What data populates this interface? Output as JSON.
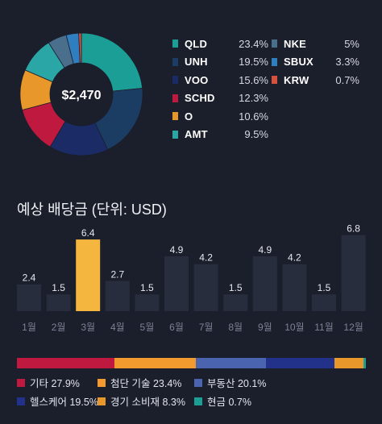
{
  "portfolio": {
    "total": "$2,470",
    "holdings": [
      {
        "ticker": "QLD",
        "percent": "23.4%",
        "share": 23.4,
        "color": "#1a9e96"
      },
      {
        "ticker": "UNH",
        "percent": "19.5%",
        "share": 19.5,
        "color": "#1c3d63"
      },
      {
        "ticker": "VOO",
        "percent": "15.6%",
        "share": 15.6,
        "color": "#1b2b66"
      },
      {
        "ticker": "SCHD",
        "percent": "12.3%",
        "share": 12.3,
        "color": "#c0193f"
      },
      {
        "ticker": "O",
        "percent": "10.6%",
        "share": 10.6,
        "color": "#e8972b"
      },
      {
        "ticker": "AMT",
        "percent": "9.5%",
        "share": 9.5,
        "color": "#2ba6a6"
      },
      {
        "ticker": "NKE",
        "percent": "5%",
        "share": 5,
        "color": "#4a6f8c"
      },
      {
        "ticker": "SBUX",
        "percent": "3.3%",
        "share": 3.3,
        "color": "#2f7fc0"
      },
      {
        "ticker": "KRW",
        "percent": "0.7%",
        "share": 0.7,
        "color": "#d8513f"
      }
    ]
  },
  "dividends": {
    "title": "예상 배당금 (단위: USD)",
    "chart_data": {
      "type": "bar",
      "categories": [
        "1월",
        "2월",
        "3월",
        "4월",
        "5월",
        "6월",
        "7월",
        "8월",
        "9월",
        "10월",
        "11월",
        "12월"
      ],
      "values": [
        2.4,
        1.5,
        6.4,
        2.7,
        1.5,
        4.9,
        4.2,
        1.5,
        4.9,
        4.2,
        1.5,
        6.8
      ],
      "labels": [
        "2.4",
        "1.5",
        "6.4",
        "2.7",
        "1.5",
        "4.9",
        "4.2",
        "1.5",
        "4.9",
        "4.2",
        "1.5",
        "6.8"
      ],
      "highlight_index": 2,
      "bar_color": "#282d3d",
      "highlight_color": "#f4b63f",
      "ylim": [
        0,
        7.2
      ]
    }
  },
  "categories": [
    {
      "label": "기타 27.9%",
      "share": 27.9,
      "color": "#c0193f"
    },
    {
      "label": "첨단 기술 23.4%",
      "share": 23.4,
      "color": "#f29a2e"
    },
    {
      "label": "부동산 20.1%",
      "share": 20.1,
      "color": "#4a64b0"
    },
    {
      "label": "헬스케어 19.5%",
      "share": 19.5,
      "color": "#22318a"
    },
    {
      "label": "경기 소비재 8.3%",
      "share": 8.3,
      "color": "#e8972b"
    },
    {
      "label": "현금 0.7%",
      "share": 0.7,
      "color": "#1a9e96"
    }
  ]
}
